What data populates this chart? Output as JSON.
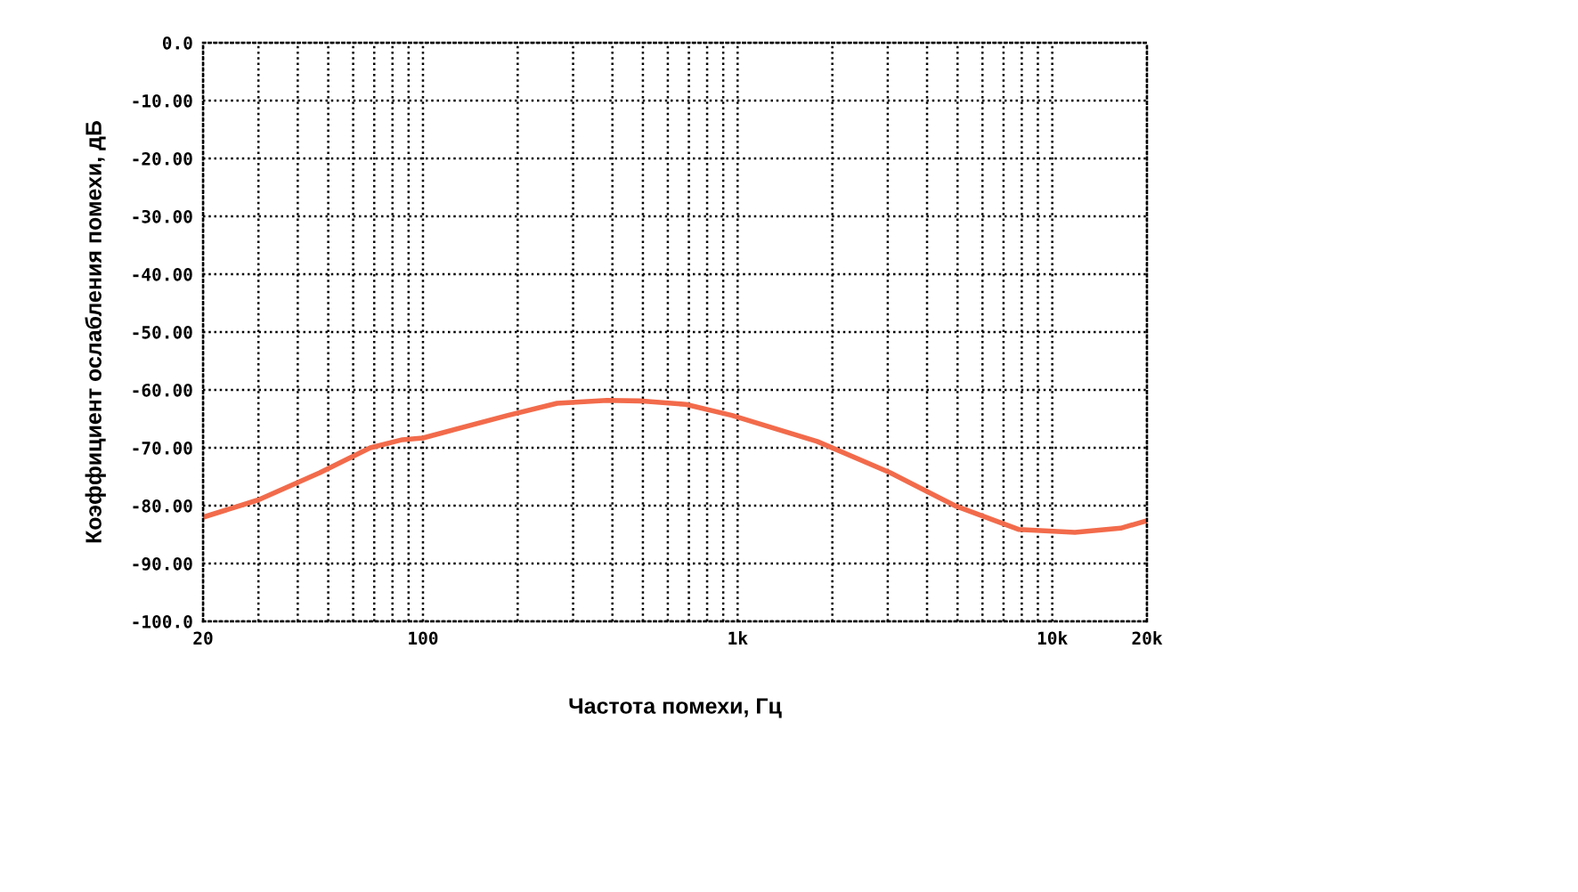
{
  "chart_data": {
    "type": "line",
    "xlabel": "Частота помехи, Гц",
    "ylabel": "Коэффициент ослабления помехи, дБ",
    "log": "x",
    "grid": true,
    "line_style": "solid",
    "marker": "none",
    "series": [
      {
        "color": "#f26b4b",
        "x": [
          20,
          30,
          47,
          68,
          86,
          100,
          186,
          267,
          384,
          487,
          684,
          959,
          1790,
          3055,
          4950,
          7810,
          11800,
          16500,
          20000
        ],
        "values": [
          -82,
          -79,
          -74.3,
          -70,
          -68.6,
          -68.3,
          -64.4,
          -62.3,
          -61.8,
          -61.9,
          -62.5,
          -64.4,
          -68.9,
          -74.3,
          -80.1,
          -84.1,
          -84.6,
          -83.9,
          -82.6
        ]
      }
    ],
    "xlim": [
      20,
      20000
    ],
    "xticks": [
      {
        "value": 20,
        "label": "20"
      },
      {
        "value": 30,
        "label": null
      },
      {
        "value": 40,
        "label": null
      },
      {
        "value": 50,
        "label": null
      },
      {
        "value": 60,
        "label": null
      },
      {
        "value": 70,
        "label": null
      },
      {
        "value": 80,
        "label": null
      },
      {
        "value": 90,
        "label": null
      },
      {
        "value": 100,
        "label": "100"
      },
      {
        "value": 200,
        "label": null
      },
      {
        "value": 300,
        "label": null
      },
      {
        "value": 400,
        "label": null
      },
      {
        "value": 500,
        "label": null
      },
      {
        "value": 600,
        "label": null
      },
      {
        "value": 700,
        "label": null
      },
      {
        "value": 800,
        "label": null
      },
      {
        "value": 900,
        "label": null
      },
      {
        "value": 1000,
        "label": "1k"
      },
      {
        "value": 2000,
        "label": null
      },
      {
        "value": 3000,
        "label": null
      },
      {
        "value": 4000,
        "label": null
      },
      {
        "value": 5000,
        "label": null
      },
      {
        "value": 6000,
        "label": null
      },
      {
        "value": 7000,
        "label": null
      },
      {
        "value": 8000,
        "label": null
      },
      {
        "value": 9000,
        "label": null
      },
      {
        "value": 10000,
        "label": "10k"
      },
      {
        "value": 20000,
        "label": "20k"
      }
    ],
    "ylim": [
      -100,
      0
    ],
    "yticks": [
      {
        "value": 0,
        "label": "0.0"
      },
      {
        "value": -10,
        "label": "-10.00"
      },
      {
        "value": -20,
        "label": "-20.00"
      },
      {
        "value": -30,
        "label": "-30.00"
      },
      {
        "value": -40,
        "label": "-40.00"
      },
      {
        "value": -50,
        "label": "-50.00"
      },
      {
        "value": -60,
        "label": "-60.00"
      },
      {
        "value": -70,
        "label": "-70.00"
      },
      {
        "value": -80,
        "label": "-80.00"
      },
      {
        "value": -90,
        "label": "-90.00"
      },
      {
        "value": -100,
        "label": "-100.0"
      }
    ]
  }
}
